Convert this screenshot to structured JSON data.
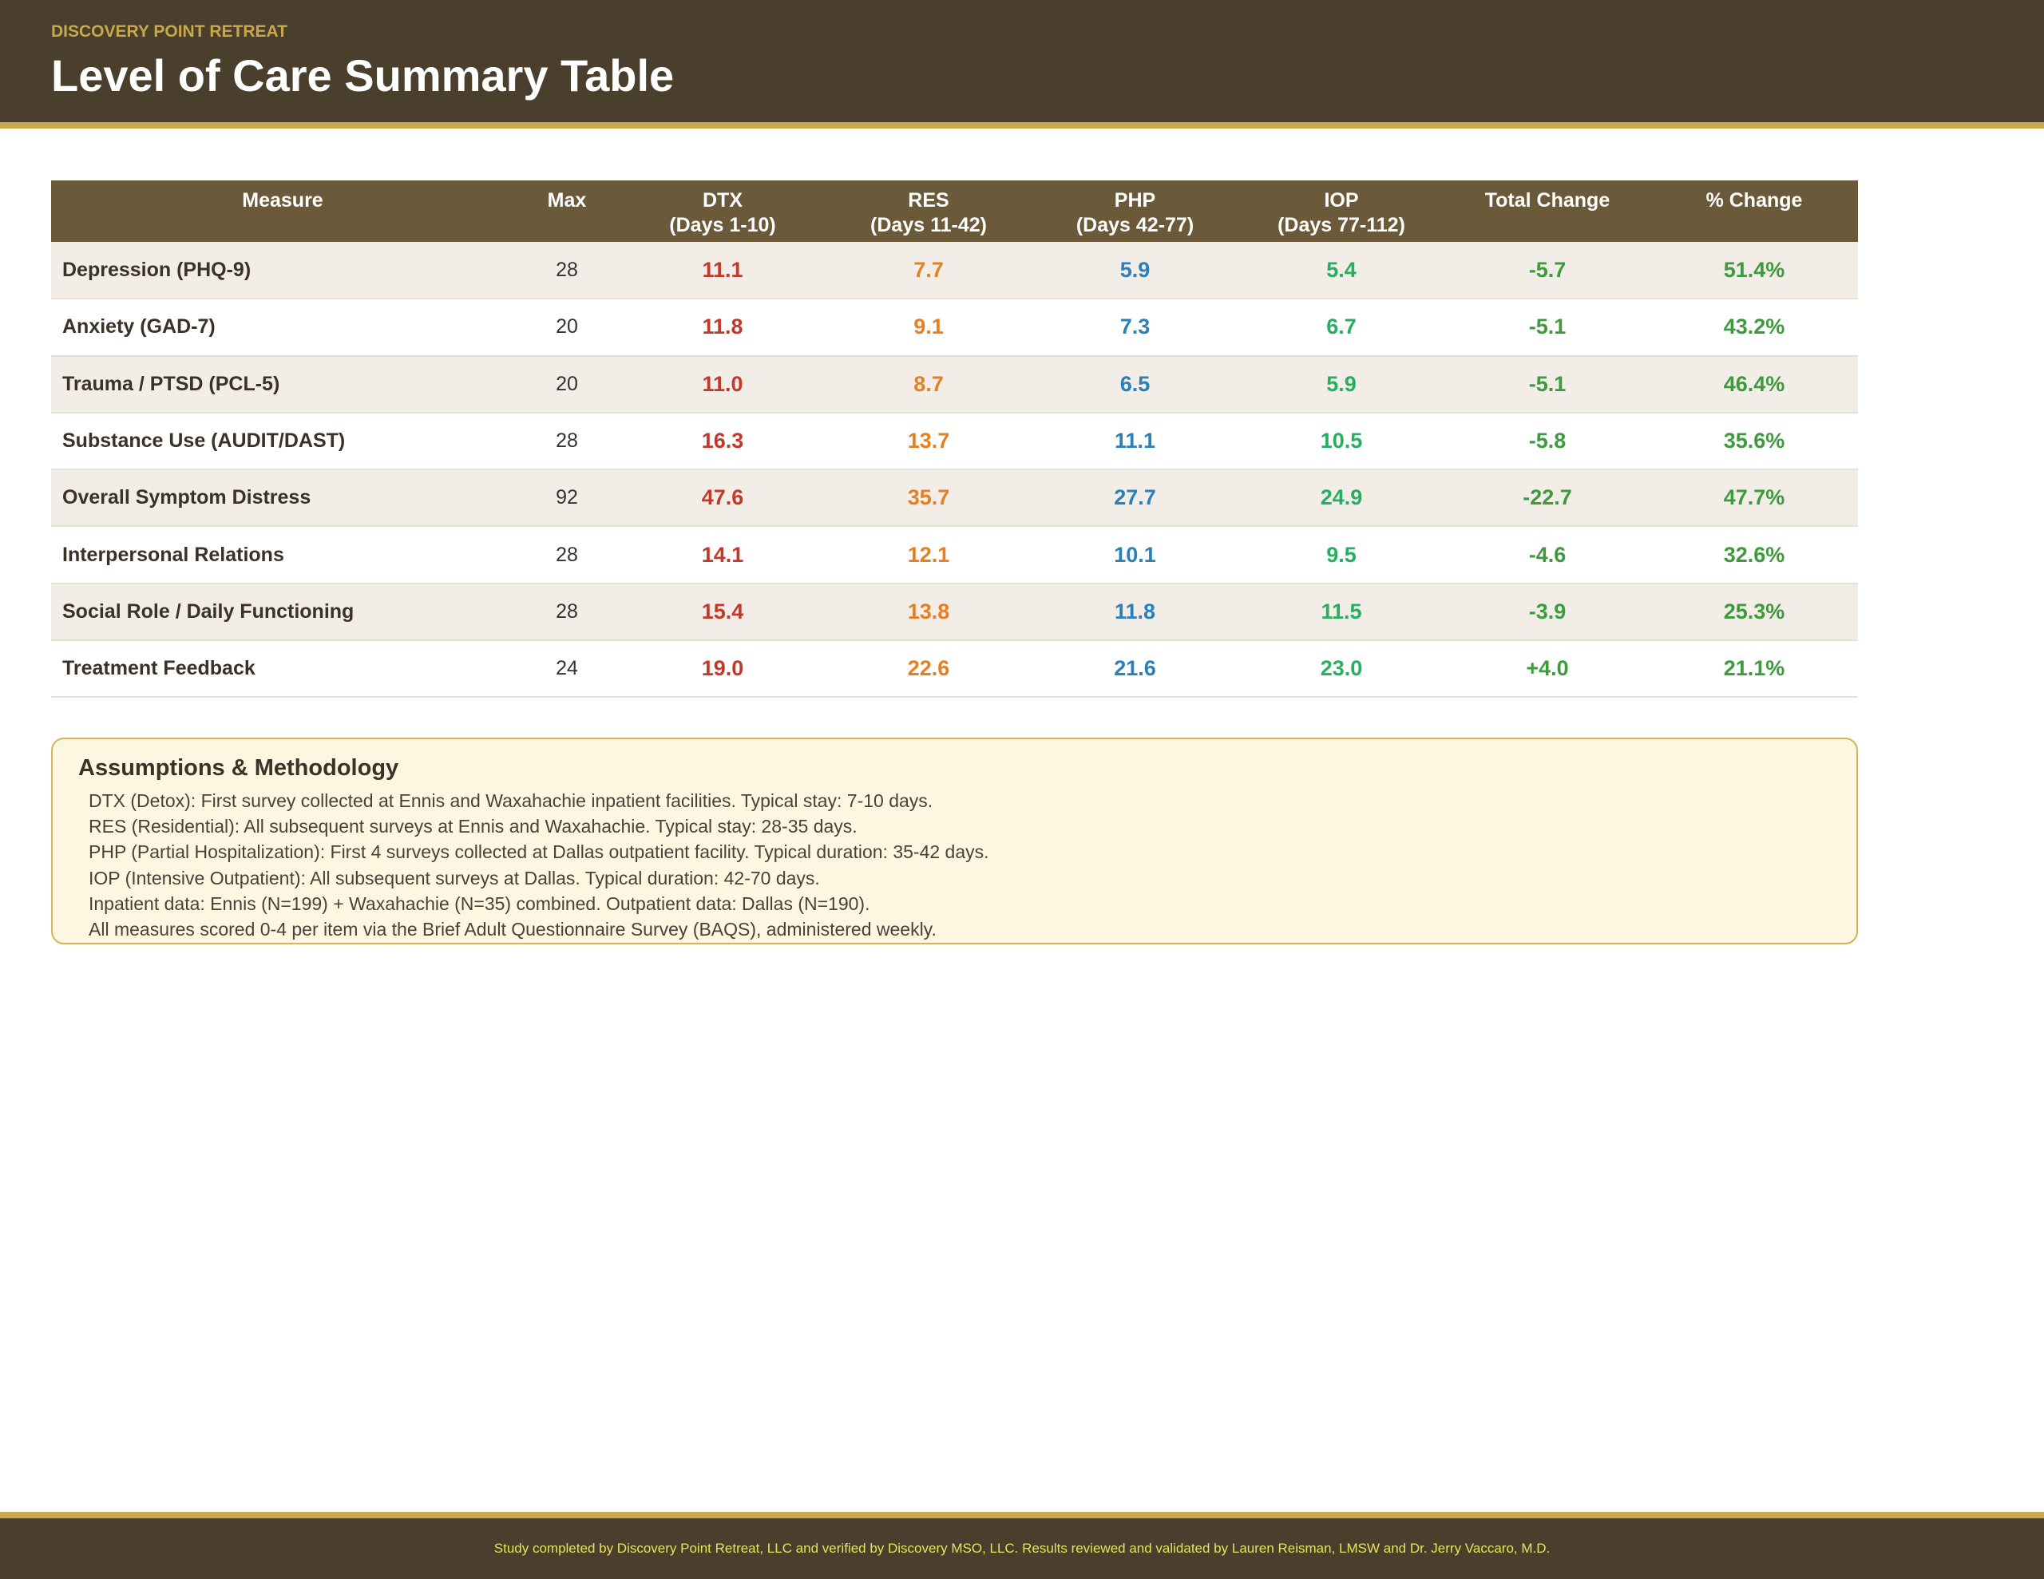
{
  "header": {
    "org": "DISCOVERY POINT RETREAT",
    "title": "Level of Care Summary Table"
  },
  "table": {
    "columns": [
      {
        "l1": "Measure",
        "l2": ""
      },
      {
        "l1": "Max",
        "l2": ""
      },
      {
        "l1": "DTX",
        "l2": "(Days 1-10)"
      },
      {
        "l1": "RES",
        "l2": "(Days 11-42)"
      },
      {
        "l1": "PHP",
        "l2": "(Days 42-77)"
      },
      {
        "l1": "IOP",
        "l2": "(Days 77-112)"
      },
      {
        "l1": "Total Change",
        "l2": ""
      },
      {
        "l1": "% Change",
        "l2": ""
      }
    ],
    "rows": [
      [
        "Depression (PHQ-9)",
        "28",
        "11.1",
        "7.7",
        "5.9",
        "5.4",
        "-5.7",
        "51.4%"
      ],
      [
        "Anxiety (GAD-7)",
        "20",
        "11.8",
        "9.1",
        "7.3",
        "6.7",
        "-5.1",
        "43.2%"
      ],
      [
        "Trauma / PTSD (PCL-5)",
        "20",
        "11.0",
        "8.7",
        "6.5",
        "5.9",
        "-5.1",
        "46.4%"
      ],
      [
        "Substance Use (AUDIT/DAST)",
        "28",
        "16.3",
        "13.7",
        "11.1",
        "10.5",
        "-5.8",
        "35.6%"
      ],
      [
        "Overall Symptom Distress",
        "92",
        "47.6",
        "35.7",
        "27.7",
        "24.9",
        "-22.7",
        "47.7%"
      ],
      [
        "Interpersonal Relations",
        "28",
        "14.1",
        "12.1",
        "10.1",
        "9.5",
        "-4.6",
        "32.6%"
      ],
      [
        "Social Role / Daily Functioning",
        "28",
        "15.4",
        "13.8",
        "11.8",
        "11.5",
        "-3.9",
        "25.3%"
      ],
      [
        "Treatment Feedback",
        "24",
        "19.0",
        "22.6",
        "21.6",
        "23.0",
        "+4.0",
        "21.1%"
      ]
    ]
  },
  "colors": {
    "dtx": "#c0392b",
    "res": "#e67e22",
    "php": "#2a80b9",
    "iop": "#27ae60",
    "change": "#3f9a3f"
  },
  "methodology": {
    "title": "Assumptions & Methodology",
    "lines": [
      "DTX (Detox): First survey collected at Ennis and Waxahachie inpatient facilities. Typical stay: 7-10 days.",
      "RES (Residential): All subsequent surveys at Ennis and Waxahachie. Typical stay: 28-35 days.",
      "PHP (Partial Hospitalization): First 4 surveys collected at Dallas outpatient facility. Typical duration: 35-42 days.",
      "IOP (Intensive Outpatient): All subsequent surveys at Dallas. Typical duration: 42-70 days.",
      "Inpatient data: Ennis (N=199) + Waxahachie (N=35) combined. Outpatient data: Dallas (N=190).",
      "All measures scored 0-4 per item via the Brief Adult Questionnaire Survey (BAQS), administered weekly."
    ]
  },
  "footer": {
    "text": "Study completed by Discovery Point Retreat, LLC and verified by Discovery MSO, LLC. Results reviewed and validated by Lauren Reisman, LMSW and Dr. Jerry Vaccaro, M.D."
  }
}
